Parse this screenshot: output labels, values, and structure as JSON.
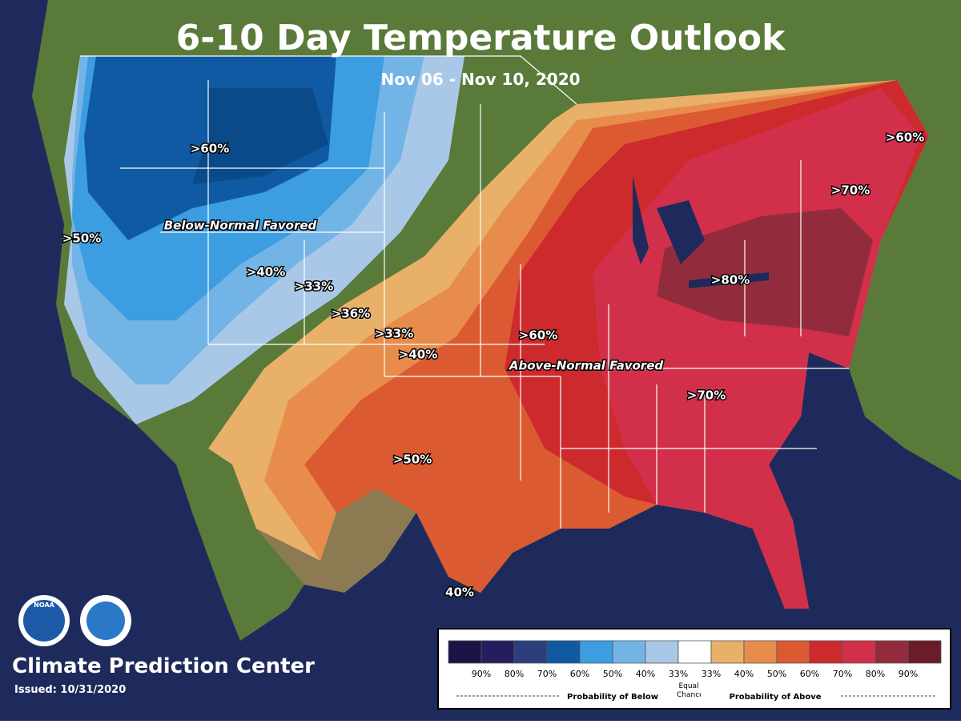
{
  "header": {
    "title": "6-10 Day Temperature Outlook",
    "subtitle": "Nov 06 - Nov 10, 2020"
  },
  "map": {
    "labels": [
      ">60%",
      "Below-Normal Favored",
      ">50%",
      ">40%",
      ">33%",
      ">36%",
      ">33%",
      ">40%",
      ">60%",
      "Above-Normal Favored",
      ">80%",
      ">70%",
      ">50%",
      "40%",
      ">60%",
      ">70%"
    ]
  },
  "footer": {
    "logo_noaa": "NOAA",
    "organization": "Climate Prediction Center",
    "issued": "Issued: 10/31/2020"
  },
  "legend": {
    "colors": [
      "#1b1446",
      "#241e5e",
      "#2c3f7c",
      "#0f5aa2",
      "#3c9de0",
      "#73b4e6",
      "#a9c8e8",
      "#ffffff",
      "#e8b068",
      "#e88c4c",
      "#dc5a32",
      "#cc2a2c",
      "#d2304a",
      "#922c3c",
      "#6a1c28"
    ],
    "labels": [
      "90%",
      "80%",
      "70%",
      "60%",
      "50%",
      "40%",
      "33%",
      "33%",
      "40%",
      "50%",
      "60%",
      "70%",
      "80%",
      "90%"
    ],
    "below": "Probability of Below",
    "equal": "Equal Chances",
    "above": "Probability of Above"
  }
}
